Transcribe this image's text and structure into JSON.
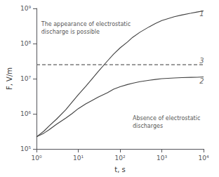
{
  "chart_data": {
    "type": "line",
    "title": "",
    "xlabel": "t, s",
    "ylabel": "F, V/m",
    "log": true,
    "grid": false,
    "xlim": [
      1,
      10000
    ],
    "ylim": [
      100000,
      1000000000
    ],
    "xticks": [
      {
        "value": 1,
        "label": "10⁰"
      },
      {
        "value": 10,
        "label": "10¹"
      },
      {
        "value": 100,
        "label": "10²"
      },
      {
        "value": 1000,
        "label": "10³"
      },
      {
        "value": 10000,
        "label": "10⁴"
      }
    ],
    "yticks": [
      {
        "value": 100000,
        "label": "10⁵"
      },
      {
        "value": 1000000,
        "label": "10⁶"
      },
      {
        "value": 10000000,
        "label": "10⁷"
      },
      {
        "value": 100000000,
        "label": "10⁸"
      },
      {
        "value": 1000000000,
        "label": "10⁹"
      }
    ],
    "series": [
      {
        "type": "line",
        "color": "#404040",
        "x": [
          1,
          1.5,
          2,
          3,
          5,
          7,
          10,
          15,
          20,
          30,
          50,
          70,
          100,
          150,
          200,
          300,
          500,
          700,
          1000,
          2000,
          3000,
          5000,
          7000,
          10000
        ],
        "values": [
          220000.0,
          320000.0,
          450000.0,
          700000.0,
          1300000.0,
          2100000.0,
          3500000.0,
          6000000.0,
          9000000.0,
          16000000.0,
          32000000.0,
          50000000.0,
          75000000.0,
          110000000.0,
          150000000.0,
          210000000.0,
          300000000.0,
          370000000.0,
          450000000.0,
          580000000.0,
          650000000.0,
          730000000.0,
          790000000.0,
          850000000.0
        ]
      },
      {
        "type": "line",
        "color": "#404040",
        "x": [
          1,
          1.5,
          2,
          3,
          5,
          7,
          10,
          15,
          20,
          30,
          50,
          70,
          100,
          150,
          200,
          300,
          500,
          700,
          1000,
          2000,
          3000,
          5000,
          7000,
          10000
        ],
        "values": [
          220000.0,
          280000.0,
          350000.0,
          500000.0,
          750000.0,
          1000000.0,
          1400000.0,
          1900000.0,
          2300000.0,
          3000000.0,
          4000000.0,
          5000000.0,
          5900000.0,
          6800000.0,
          7400000.0,
          8200000.0,
          9000000.0,
          9500000.0,
          10000000.0,
          10500000.0,
          10700000.0,
          10900000.0,
          11000000.0,
          11200000.0
        ]
      },
      {
        "type": "hline",
        "color": "#606060",
        "line_style": "dashed",
        "y": 25000000.0
      }
    ],
    "annotations": [
      {
        "text": "1",
        "x": 8000,
        "y": 720000000.0,
        "color": "#404040"
      },
      {
        "text": "2",
        "x": 8000,
        "y": 8500000.0,
        "color": "#404040"
      },
      {
        "text": "3",
        "x": 8000,
        "y": 32000000.0,
        "color": "#404040"
      },
      {
        "text": "The appearance of electrostatic\ndischarge is possible",
        "x": 1.3,
        "y": 450000000.0,
        "color": "#222222"
      },
      {
        "text": "Absence of electrostatic\ndischarges",
        "x": 200,
        "y": 350000.0,
        "color": "#222222"
      }
    ]
  }
}
